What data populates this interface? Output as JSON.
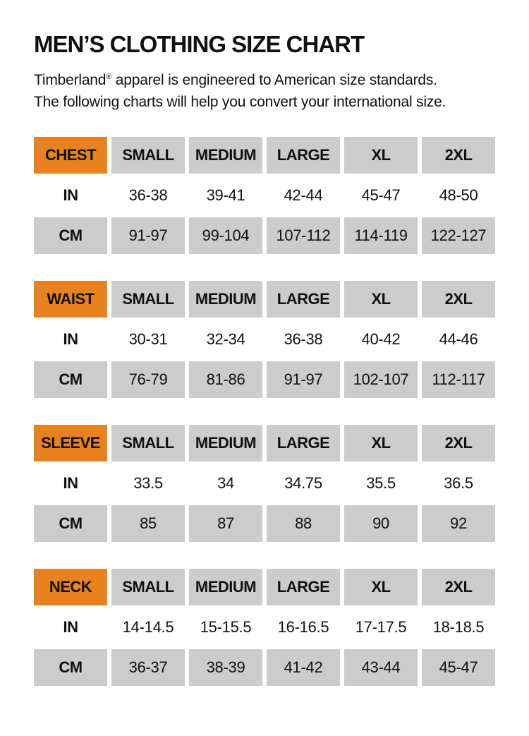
{
  "page": {
    "title": "MEN’S CLOTHING SIZE CHART",
    "intro": {
      "brand": "Timberland",
      "registered_mark": "®",
      "rest": " apparel is engineered to American size standards. The following charts will help you convert your international size."
    }
  },
  "colors": {
    "accent_orange": "#E8821E",
    "cell_gray": "#CCCCCC",
    "text_black": "#111111",
    "background": "#FFFFFF"
  },
  "size_headers": [
    "SMALL",
    "MEDIUM",
    "LARGE",
    "XL",
    "2XL"
  ],
  "unit_labels": {
    "inches": "IN",
    "centimeters": "CM"
  },
  "tables": [
    {
      "label": "CHEST",
      "in": [
        "36-38",
        "39-41",
        "42-44",
        "45-47",
        "48-50"
      ],
      "cm": [
        "91-97",
        "99-104",
        "107-112",
        "114-119",
        "122-127"
      ]
    },
    {
      "label": "WAIST",
      "in": [
        "30-31",
        "32-34",
        "36-38",
        "40-42",
        "44-46"
      ],
      "cm": [
        "76-79",
        "81-86",
        "91-97",
        "102-107",
        "112-117"
      ]
    },
    {
      "label": "SLEEVE",
      "in": [
        "33.5",
        "34",
        "34.75",
        "35.5",
        "36.5"
      ],
      "cm": [
        "85",
        "87",
        "88",
        "90",
        "92"
      ]
    },
    {
      "label": "NECK",
      "in": [
        "14-14.5",
        "15-15.5",
        "16-16.5",
        "17-17.5",
        "18-18.5"
      ],
      "cm": [
        "36-37",
        "38-39",
        "41-42",
        "43-44",
        "45-47"
      ]
    }
  ]
}
